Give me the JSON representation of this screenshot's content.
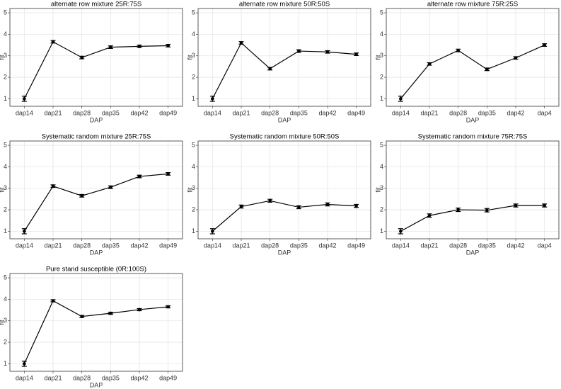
{
  "chart_data": [
    {
      "type": "line",
      "title": "alternate row mixture 25R:75S",
      "xlabel": "DAP",
      "ylabel": "fit",
      "categories": [
        "dap14",
        "dap21",
        "dap28",
        "dap35",
        "dap42",
        "dap49"
      ],
      "values": [
        1.0,
        3.65,
        2.92,
        3.4,
        3.44,
        3.47
      ],
      "errors": [
        0.12,
        0.06,
        0.06,
        0.06,
        0.06,
        0.06
      ],
      "ylim": [
        0.65,
        5.2
      ],
      "yticks": [
        1,
        2,
        3,
        4,
        5
      ],
      "grid": true,
      "color": "#000000"
    },
    {
      "type": "line",
      "title": "alternate row mixture 50R:50S",
      "xlabel": "DAP",
      "ylabel": "fit",
      "categories": [
        "dap14",
        "dap21",
        "dap28",
        "dap35",
        "dap42",
        "dap49"
      ],
      "values": [
        1.0,
        3.6,
        2.4,
        3.22,
        3.18,
        3.07
      ],
      "errors": [
        0.12,
        0.06,
        0.06,
        0.06,
        0.06,
        0.06
      ],
      "ylim": [
        0.65,
        5.2
      ],
      "yticks": [
        1,
        2,
        3,
        4,
        5
      ],
      "grid": true,
      "color": "#000000"
    },
    {
      "type": "line",
      "title": "alternate row mixture 75R:25S",
      "xlabel": "DAP",
      "ylabel": "fit",
      "categories": [
        "dap14",
        "dap21",
        "dap28",
        "dap35",
        "dap42",
        "dap4"
      ],
      "values": [
        1.0,
        2.62,
        3.25,
        2.37,
        2.9,
        3.5
      ],
      "errors": [
        0.12,
        0.06,
        0.06,
        0.06,
        0.06,
        0.06
      ],
      "ylim": [
        0.65,
        5.2
      ],
      "yticks": [
        1,
        2,
        3,
        4,
        5
      ],
      "grid": true,
      "color": "#000000"
    },
    {
      "type": "line",
      "title": "Systematic random mixture 25R:75S",
      "xlabel": "DAP",
      "ylabel": "fit",
      "categories": [
        "dap14",
        "dap21",
        "dap28",
        "dap35",
        "dap42",
        "dap49"
      ],
      "values": [
        1.0,
        3.1,
        2.65,
        3.05,
        3.55,
        3.67
      ],
      "errors": [
        0.12,
        0.06,
        0.06,
        0.06,
        0.06,
        0.06
      ],
      "ylim": [
        0.65,
        5.2
      ],
      "yticks": [
        1,
        2,
        3,
        4,
        5
      ],
      "grid": true,
      "color": "#000000"
    },
    {
      "type": "line",
      "title": "Systematic random mixture 50R:50S",
      "xlabel": "DAP",
      "ylabel": "fit",
      "categories": [
        "dap14",
        "dap21",
        "dap28",
        "dap35",
        "dap42",
        "dap49"
      ],
      "values": [
        1.0,
        2.15,
        2.42,
        2.12,
        2.25,
        2.18
      ],
      "errors": [
        0.12,
        0.07,
        0.07,
        0.07,
        0.07,
        0.07
      ],
      "ylim": [
        0.65,
        5.2
      ],
      "yticks": [
        1,
        2,
        3,
        4,
        5
      ],
      "grid": true,
      "color": "#000000"
    },
    {
      "type": "line",
      "title": "Systematic random mixture 75R:75S",
      "xlabel": "DAP",
      "ylabel": "fit",
      "categories": [
        "dap14",
        "dap21",
        "dap28",
        "dap35",
        "dap42",
        "dap4"
      ],
      "values": [
        1.0,
        1.73,
        2.0,
        1.98,
        2.2,
        2.2
      ],
      "errors": [
        0.12,
        0.08,
        0.08,
        0.08,
        0.07,
        0.07
      ],
      "ylim": [
        0.65,
        5.2
      ],
      "yticks": [
        1,
        2,
        3,
        4,
        5
      ],
      "grid": true,
      "color": "#000000"
    },
    {
      "type": "line",
      "title": "Pure stand susceptible (0R:100S)",
      "xlabel": "DAP",
      "ylabel": "fit",
      "categories": [
        "dap14",
        "dap21",
        "dap28",
        "dap35",
        "dap42",
        "dap49"
      ],
      "values": [
        1.0,
        3.93,
        3.2,
        3.35,
        3.52,
        3.65
      ],
      "errors": [
        0.12,
        0.05,
        0.05,
        0.05,
        0.05,
        0.05
      ],
      "ylim": [
        0.65,
        5.2
      ],
      "yticks": [
        1,
        2,
        3,
        4,
        5
      ],
      "grid": true,
      "color": "#000000"
    }
  ]
}
